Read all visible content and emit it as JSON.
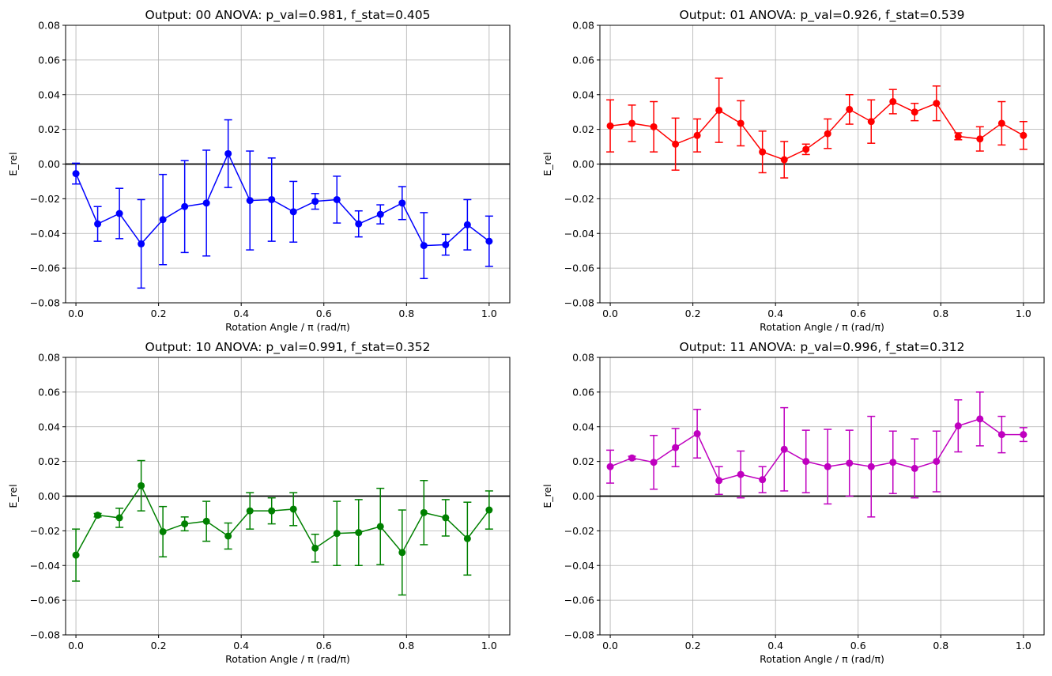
{
  "chart_data": [
    {
      "type": "line",
      "title": "Output: 00 ANOVA: p_val=0.981, f_stat=0.405",
      "xlabel": "Rotation Angle / π (rad/π)",
      "ylabel": "E_rel",
      "xlim": [
        -0.025,
        1.05
      ],
      "ylim": [
        -0.08,
        0.08
      ],
      "xticks": [
        "0.0",
        "0.2",
        "0.4",
        "0.6",
        "0.8",
        "1.0"
      ],
      "yticks": [
        "−0.08",
        "−0.06",
        "−0.04",
        "−0.02",
        "0.00",
        "0.02",
        "0.04",
        "0.06",
        "0.08"
      ],
      "grid": true,
      "reference_line_y": 0,
      "color": "#0000ff",
      "x": [
        0.0,
        0.0526,
        0.1053,
        0.1579,
        0.2105,
        0.2632,
        0.3158,
        0.3684,
        0.4211,
        0.4737,
        0.5263,
        0.5789,
        0.6316,
        0.6842,
        0.7368,
        0.7895,
        0.8421,
        0.8947,
        0.9474,
        1.0
      ],
      "values": [
        -0.0055,
        -0.0345,
        -0.0285,
        -0.046,
        -0.032,
        -0.0245,
        -0.0225,
        0.006,
        -0.021,
        -0.0205,
        -0.0275,
        -0.0215,
        -0.0205,
        -0.0345,
        -0.029,
        -0.0225,
        -0.047,
        -0.0465,
        -0.035,
        -0.0445
      ],
      "errors": [
        0.006,
        0.01,
        0.0145,
        0.0255,
        0.026,
        0.0265,
        0.0305,
        0.0195,
        0.0285,
        0.024,
        0.0175,
        0.0045,
        0.0135,
        0.0075,
        0.0055,
        0.0095,
        0.019,
        0.006,
        0.0145,
        0.0145
      ]
    },
    {
      "type": "line",
      "title": "Output: 01 ANOVA: p_val=0.926, f_stat=0.539",
      "xlabel": "Rotation Angle / π (rad/π)",
      "ylabel": "E_rel",
      "xlim": [
        -0.025,
        1.05
      ],
      "ylim": [
        -0.08,
        0.08
      ],
      "xticks": [
        "0.0",
        "0.2",
        "0.4",
        "0.6",
        "0.8",
        "1.0"
      ],
      "yticks": [
        "−0.08",
        "−0.06",
        "−0.04",
        "−0.02",
        "0.00",
        "0.02",
        "0.04",
        "0.06",
        "0.08"
      ],
      "grid": true,
      "reference_line_y": 0,
      "color": "#ff0000",
      "x": [
        0.0,
        0.0526,
        0.1053,
        0.1579,
        0.2105,
        0.2632,
        0.3158,
        0.3684,
        0.4211,
        0.4737,
        0.5263,
        0.5789,
        0.6316,
        0.6842,
        0.7368,
        0.7895,
        0.8421,
        0.8947,
        0.9474,
        1.0
      ],
      "values": [
        0.022,
        0.0235,
        0.0215,
        0.0115,
        0.0165,
        0.031,
        0.0235,
        0.007,
        0.0025,
        0.0085,
        0.0175,
        0.0315,
        0.0245,
        0.036,
        0.03,
        0.035,
        0.016,
        0.0145,
        0.0235,
        0.0165
      ],
      "errors": [
        0.015,
        0.0105,
        0.0145,
        0.015,
        0.0095,
        0.0185,
        0.013,
        0.012,
        0.0105,
        0.003,
        0.0085,
        0.0085,
        0.0125,
        0.007,
        0.005,
        0.01,
        0.002,
        0.007,
        0.0125,
        0.008
      ]
    },
    {
      "type": "line",
      "title": "Output: 10 ANOVA: p_val=0.991, f_stat=0.352",
      "xlabel": "Rotation Angle / π (rad/π)",
      "ylabel": "E_rel",
      "xlim": [
        -0.025,
        1.05
      ],
      "ylim": [
        -0.08,
        0.08
      ],
      "xticks": [
        "0.0",
        "0.2",
        "0.4",
        "0.6",
        "0.8",
        "1.0"
      ],
      "yticks": [
        "−0.08",
        "−0.06",
        "−0.04",
        "−0.02",
        "0.00",
        "0.02",
        "0.04",
        "0.06",
        "0.08"
      ],
      "grid": true,
      "reference_line_y": 0,
      "color": "#008000",
      "x": [
        0.0,
        0.0526,
        0.1053,
        0.1579,
        0.2105,
        0.2632,
        0.3158,
        0.3684,
        0.4211,
        0.4737,
        0.5263,
        0.5789,
        0.6316,
        0.6842,
        0.7368,
        0.7895,
        0.8421,
        0.8947,
        0.9474,
        1.0
      ],
      "values": [
        -0.034,
        -0.011,
        -0.0125,
        0.006,
        -0.0205,
        -0.016,
        -0.0145,
        -0.023,
        -0.0085,
        -0.0085,
        -0.0075,
        -0.03,
        -0.0215,
        -0.021,
        -0.0175,
        -0.0325,
        -0.0095,
        -0.0125,
        -0.0245,
        -0.008
      ],
      "errors": [
        0.015,
        0.001,
        0.0055,
        0.0145,
        0.0145,
        0.004,
        0.0115,
        0.0075,
        0.0105,
        0.0075,
        0.0095,
        0.008,
        0.0185,
        0.019,
        0.022,
        0.0245,
        0.0185,
        0.0105,
        0.021,
        0.011
      ]
    },
    {
      "type": "line",
      "title": "Output: 11 ANOVA: p_val=0.996, f_stat=0.312",
      "xlabel": "Rotation Angle / π (rad/π)",
      "ylabel": "E_rel",
      "xlim": [
        -0.025,
        1.05
      ],
      "ylim": [
        -0.08,
        0.08
      ],
      "xticks": [
        "0.0",
        "0.2",
        "0.4",
        "0.6",
        "0.8",
        "1.0"
      ],
      "yticks": [
        "−0.08",
        "−0.06",
        "−0.04",
        "−0.02",
        "0.00",
        "0.02",
        "0.04",
        "0.06",
        "0.08"
      ],
      "grid": true,
      "reference_line_y": 0,
      "color": "#bf00bf",
      "x": [
        0.0,
        0.0526,
        0.1053,
        0.1579,
        0.2105,
        0.2632,
        0.3158,
        0.3684,
        0.4211,
        0.4737,
        0.5263,
        0.5789,
        0.6316,
        0.6842,
        0.7368,
        0.7895,
        0.8421,
        0.8947,
        0.9474,
        1.0
      ],
      "values": [
        0.017,
        0.022,
        0.0195,
        0.028,
        0.036,
        0.009,
        0.0125,
        0.0095,
        0.027,
        0.02,
        0.017,
        0.019,
        0.017,
        0.0195,
        0.016,
        0.02,
        0.0405,
        0.0445,
        0.0355,
        0.0355
      ],
      "errors": [
        0.0095,
        0.001,
        0.0155,
        0.011,
        0.014,
        0.008,
        0.0135,
        0.0075,
        0.024,
        0.018,
        0.0215,
        0.019,
        0.029,
        0.018,
        0.017,
        0.0175,
        0.015,
        0.0155,
        0.0105,
        0.004
      ]
    }
  ]
}
